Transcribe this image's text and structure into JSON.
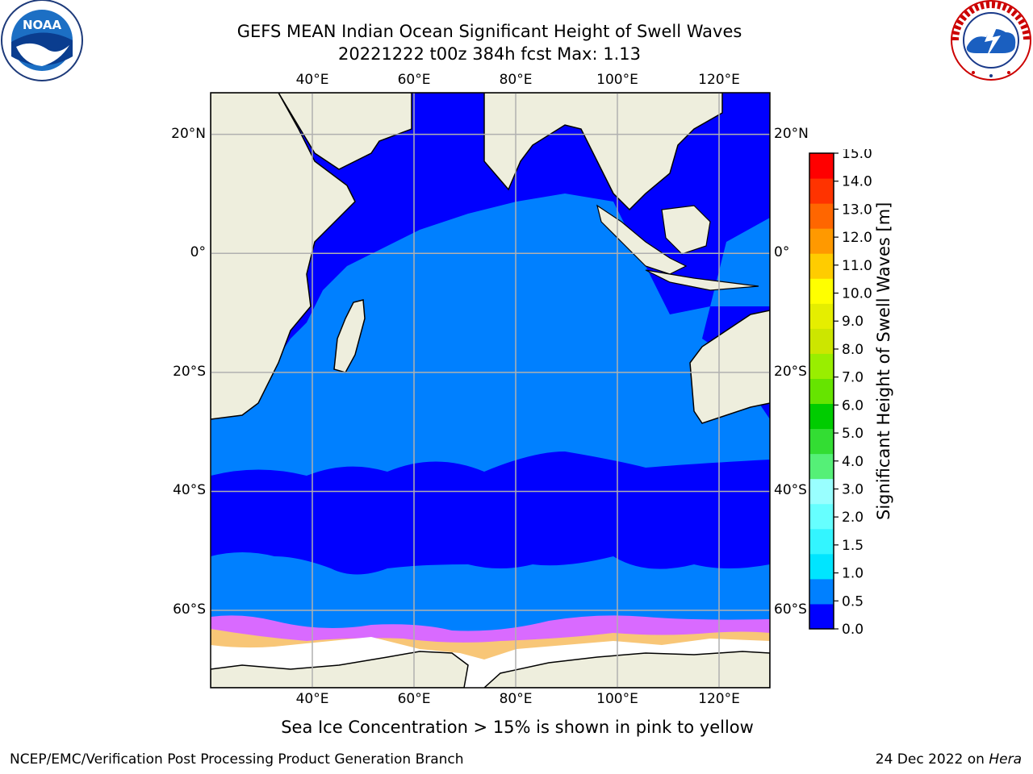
{
  "title": {
    "line1": "GEFS MEAN Indian Ocean Significant Height of Swell Waves",
    "line2": "20221222 t00z 384h fcst   Max: 1.13"
  },
  "logos": {
    "left": {
      "text": "NOAA",
      "ring_text": "NATIONAL OCEANIC AND ATMOSPHERIC ADMINISTRATION • U.S. DEPARTMENT OF COMMERCE"
    },
    "right": {
      "ring_text": "NATIONAL WEATHER SERVICE"
    }
  },
  "map": {
    "lon_labels": [
      "40°E",
      "60°E",
      "80°E",
      "100°E",
      "120°E"
    ],
    "lat_labels_left": [
      "20°N",
      "0°",
      "20°S",
      "40°S",
      "60°S"
    ],
    "lat_labels_right": [
      "20°N",
      "0°",
      "20°S",
      "40°S",
      "60°S"
    ],
    "lon_range": [
      20,
      130
    ],
    "lat_range": [
      -73,
      27
    ],
    "gridlines": true,
    "colors": {
      "ocean_low": "#0000ff",
      "ocean_mid": "#0080ff",
      "land": "#eeeedd",
      "ice_pink": "#ff66ff",
      "ice_yellow": "#ffdd55"
    }
  },
  "colorbar": {
    "label": "Significant Height of Swell Waves [m]",
    "ticks": [
      "0.0",
      "0.5",
      "1.0",
      "1.5",
      "2.0",
      "3.0",
      "4.0",
      "5.0",
      "6.0",
      "7.0",
      "8.0",
      "9.0",
      "10.0",
      "11.0",
      "12.0",
      "13.0",
      "14.0",
      "15.0"
    ],
    "colors": [
      "#0000ff",
      "#0080ff",
      "#00e5ff",
      "#33f5ff",
      "#66ffff",
      "#99ffff",
      "#55f077",
      "#33dd33",
      "#00cc00",
      "#66e400",
      "#99ee00",
      "#cce600",
      "#e5ee00",
      "#ffff00",
      "#ffcc00",
      "#ff9900",
      "#ff6600",
      "#ff3300",
      "#ff0000"
    ]
  },
  "caption": "Sea Ice Concentration > 15% is shown in pink to yellow",
  "footer": {
    "left": "NCEP/EMC/Verification Post Processing Product Generation Branch",
    "date": "24 Dec 2022 on ",
    "machine": "Hera"
  }
}
